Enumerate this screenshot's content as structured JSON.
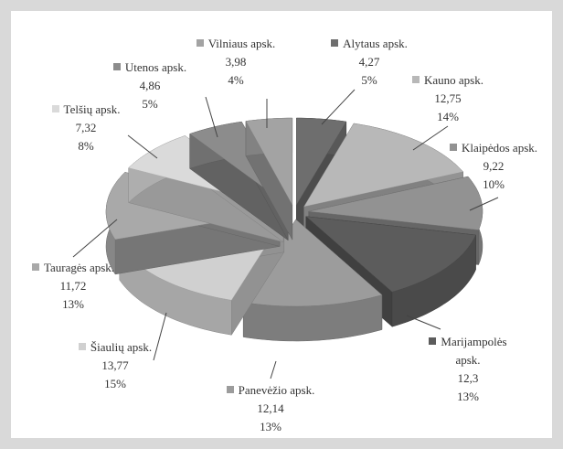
{
  "chart_data": {
    "type": "pie3d",
    "categories": [
      "Alytaus apsk.",
      "Kauno apsk.",
      "Klaipėdos apsk.",
      "Marijampolės apsk.",
      "Panevėžio apsk.",
      "Šiaulių apsk.",
      "Tauragės apsk.",
      "Telšių apsk.",
      "Utenos apsk.",
      "Vilniaus apsk."
    ],
    "values": [
      4.27,
      12.75,
      9.22,
      12.3,
      12.14,
      13.77,
      11.72,
      7.32,
      4.86,
      3.98
    ],
    "value_labels": [
      "4,27",
      "12,75",
      "9,22",
      "12,3",
      "12,14",
      "13,77",
      "11,72",
      "7,32",
      "4,86",
      "3,98"
    ],
    "percent_labels": [
      "5%",
      "14%",
      "10%",
      "13%",
      "13%",
      "15%",
      "13%",
      "8%",
      "5%",
      "4%"
    ],
    "colors": [
      "#6e6e6e",
      "#b8b8b8",
      "#929292",
      "#5c5c5c",
      "#9c9c9c",
      "#d0d0d0",
      "#a9a9a9",
      "#dadada",
      "#8c8c8c",
      "#a3a3a3"
    ]
  }
}
